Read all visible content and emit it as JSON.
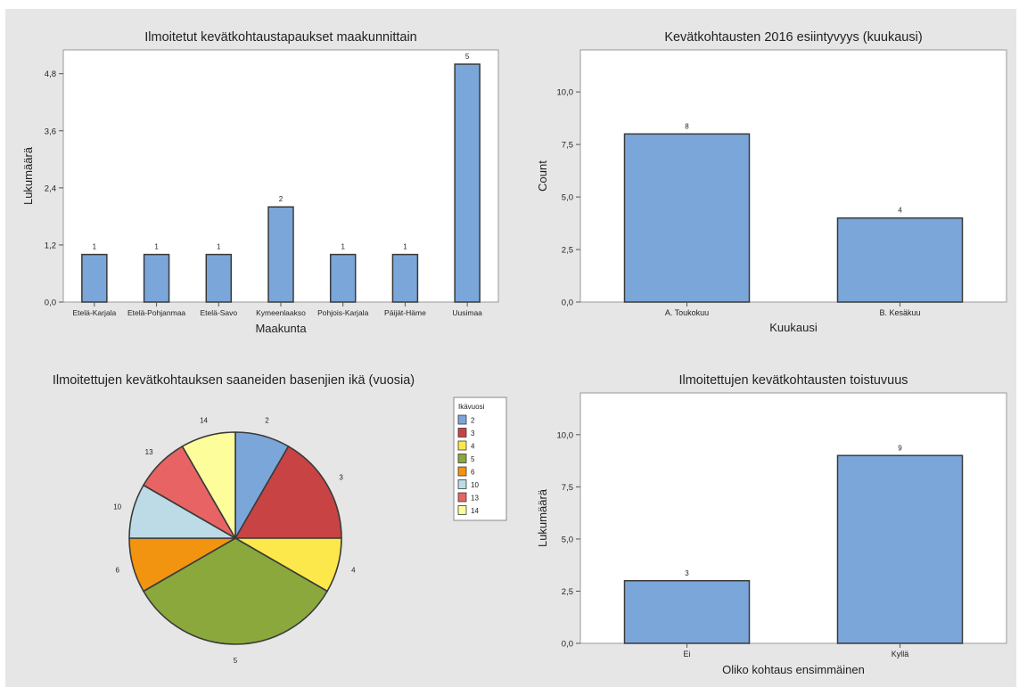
{
  "colors": {
    "page_bg": "#e6e6e6",
    "plot_bg": "#ffffff",
    "bar_fill": "#7ba6d9",
    "bar_stroke": "#3a3a3a",
    "axis": "#555555",
    "text": "#222222"
  },
  "chart_data": [
    {
      "type": "bar",
      "title": "Ilmoitetut kevätkohtaustapaukset maakunnittain",
      "xlabel": "Maakunta",
      "ylabel": "Lukumäärä",
      "categories": [
        "Etelä-Karjala",
        "Etelä-Pohjanmaa",
        "Etelä-Savo",
        "Kymeenlaakso",
        "Pohjois-Karjala",
        "Päijät-Häme",
        "Uusimaa"
      ],
      "values": [
        1,
        1,
        1,
        2,
        1,
        1,
        5
      ],
      "data_labels": [
        "1",
        "1",
        "1",
        "2",
        "1",
        "1",
        "5"
      ],
      "yticks": [
        0,
        1.2,
        2.4,
        3.6,
        4.8
      ],
      "ytick_labels": [
        "0,0",
        "1,2",
        "2,4",
        "3,6",
        "4,8"
      ],
      "ylim": [
        0,
        5.3
      ],
      "grid": false
    },
    {
      "type": "bar",
      "title": "Kevätkohtausten 2016 esiintyvyys (kuukausi)",
      "xlabel": "Kuukausi",
      "ylabel": "Count",
      "categories": [
        "A. Toukokuu",
        "B. Kesäkuu"
      ],
      "values": [
        8,
        4
      ],
      "data_labels": [
        "8",
        "4"
      ],
      "yticks": [
        0,
        2.5,
        5,
        7.5,
        10
      ],
      "ytick_labels": [
        "0,0",
        "2,5",
        "5,0",
        "7,5",
        "10,0"
      ],
      "ylim": [
        0,
        12
      ],
      "grid": false
    },
    {
      "type": "pie",
      "title": "Ilmoitettujen kevätkohtauksen saaneiden basenjien ikä (vuosia)",
      "legend_title": "Ikävuosi",
      "legend_placement": "right",
      "labels": [
        "2",
        "3",
        "4",
        "5",
        "6",
        "10",
        "13",
        "14"
      ],
      "values": [
        1,
        2,
        1,
        4,
        1,
        1,
        1,
        1
      ],
      "colors": [
        "#7ba6d9",
        "#c84444",
        "#fce84a",
        "#8ba83c",
        "#f29410",
        "#bddbe6",
        "#e86464",
        "#fdfd9c"
      ]
    },
    {
      "type": "bar",
      "title": "Ilmoitettujen kevätkohtausten toistuvuus",
      "xlabel": "Oliko kohtaus ensimmäinen",
      "ylabel": "Lukumäärä",
      "categories": [
        "Ei",
        "Kyllä"
      ],
      "values": [
        3,
        9
      ],
      "data_labels": [
        "3",
        "9"
      ],
      "yticks": [
        0,
        2.5,
        5,
        7.5,
        10
      ],
      "ytick_labels": [
        "0,0",
        "2,5",
        "5,0",
        "7,5",
        "10,0"
      ],
      "ylim": [
        0,
        12
      ],
      "grid": false
    }
  ]
}
